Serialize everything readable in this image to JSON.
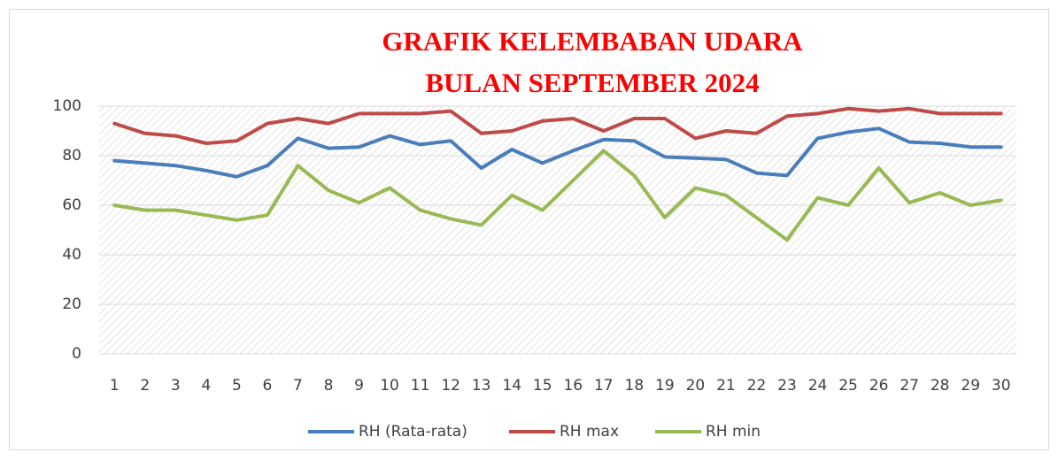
{
  "chart_data": {
    "type": "line",
    "title": [
      "GRAFIK KELEMBABAN UDARA",
      "BULAN SEPTEMBER 2024"
    ],
    "categories": [
      "1",
      "2",
      "3",
      "4",
      "5",
      "6",
      "7",
      "8",
      "9",
      "10",
      "11",
      "12",
      "13",
      "14",
      "15",
      "16",
      "17",
      "18",
      "19",
      "20",
      "21",
      "22",
      "23",
      "24",
      "25",
      "26",
      "27",
      "28",
      "29",
      "30"
    ],
    "series": [
      {
        "name": "RH (Rata-rata)",
        "color": "#4a7ebb",
        "values": [
          78,
          77,
          76,
          74,
          71.5,
          76,
          87,
          83,
          83.5,
          88,
          84.5,
          86,
          75,
          82.5,
          77,
          82,
          86.5,
          86,
          79.5,
          79,
          78.5,
          73,
          72,
          87,
          89.5,
          91,
          85.5,
          85,
          83.5,
          83.5
        ]
      },
      {
        "name": "RH max",
        "color": "#be4b48",
        "values": [
          93,
          89,
          88,
          85,
          86,
          93,
          95,
          93,
          97,
          97,
          97,
          98,
          89,
          90,
          94,
          95,
          90,
          95,
          95,
          87,
          90,
          89,
          96,
          97,
          99,
          98,
          99,
          97,
          97,
          97
        ]
      },
      {
        "name": "RH min",
        "color": "#98b954",
        "values": [
          60,
          58,
          58,
          56,
          54,
          56,
          76,
          66,
          61,
          67,
          58,
          54.5,
          52,
          64,
          58,
          70,
          82,
          72,
          55,
          67,
          64,
          55,
          46,
          63,
          60,
          75,
          61,
          65,
          60,
          62
        ]
      }
    ],
    "ylim": [
      0,
      100
    ],
    "yticks": [
      0,
      20,
      40,
      60,
      80,
      100
    ],
    "grid": true,
    "legend": "bottom"
  }
}
